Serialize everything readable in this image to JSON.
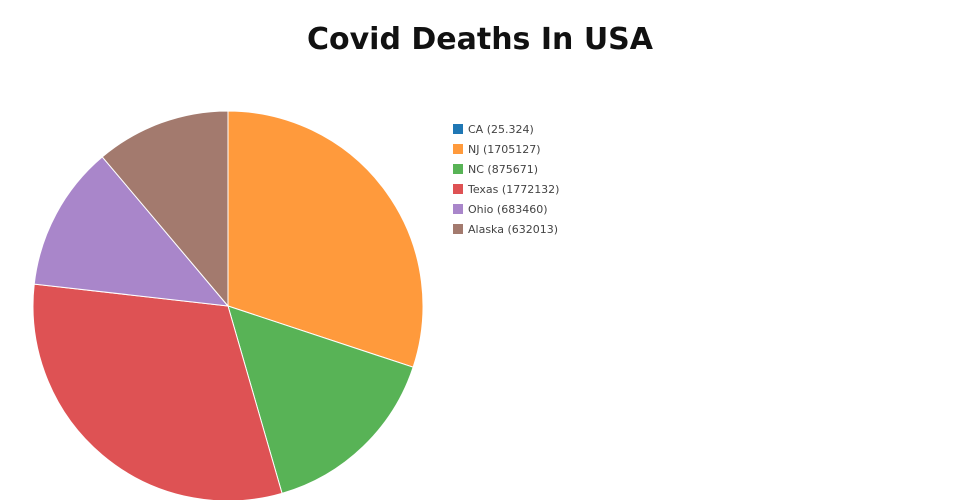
{
  "chart_data": {
    "type": "pie",
    "title": "Covid Deaths In USA",
    "slices": [
      {
        "label": "CA (25.324)",
        "value": 25.324,
        "color": "#1f77b4"
      },
      {
        "label": "NJ (1705127)",
        "value": 1705127,
        "color": "#ff9a3c"
      },
      {
        "label": "NC (875671)",
        "value": 875671,
        "color": "#58b356"
      },
      {
        "label": "Texas (1772132)",
        "value": 1772132,
        "color": "#de5254"
      },
      {
        "label": "Ohio (683460)",
        "value": 683460,
        "color": "#a986ca"
      },
      {
        "label": "Alaska (632013)",
        "value": 632013,
        "color": "#a37a6e"
      }
    ],
    "legend_position": "right",
    "start_angle": "top",
    "direction": "clockwise"
  }
}
